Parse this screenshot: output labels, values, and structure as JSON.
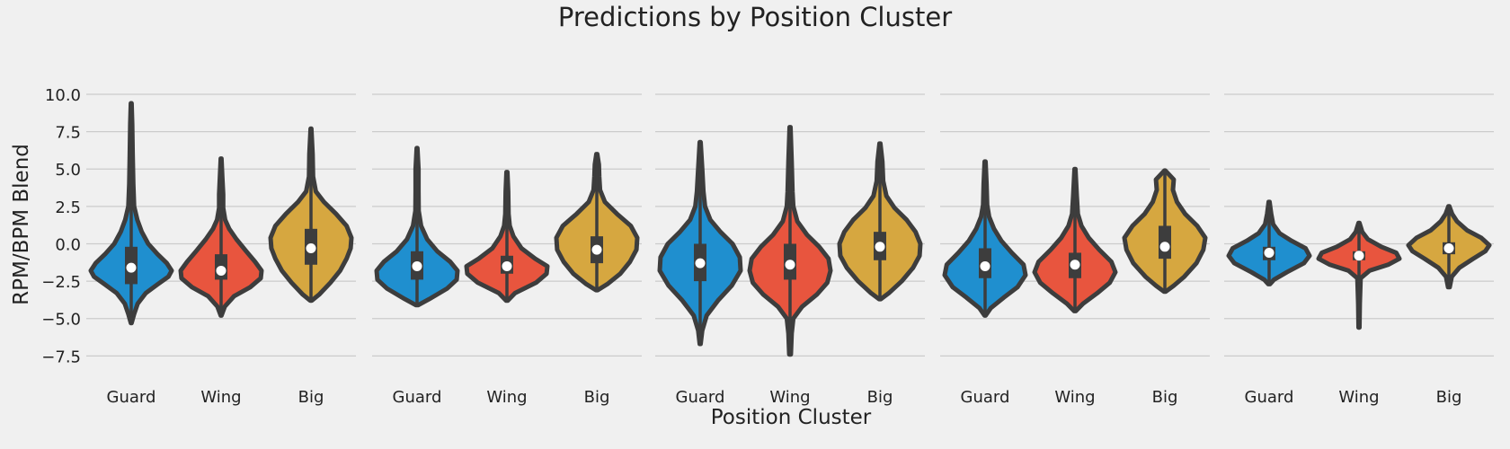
{
  "chart_data": {
    "type": "violin",
    "title": "Predictions by Position Cluster",
    "xlabel": "Position Cluster",
    "ylabel": "RPM/BPM Blend",
    "ylim": [
      -8.5,
      11.5
    ],
    "yticks": [
      10.0,
      7.5,
      5.0,
      2.5,
      0.0,
      -2.5,
      -5.0,
      -7.5
    ],
    "ytick_labels": [
      "10.0",
      "7.5",
      "5.0",
      "2.5",
      "0.0",
      "−2.5",
      "−5.0",
      "−7.5"
    ],
    "categories": [
      "Guard",
      "Wing",
      "Big"
    ],
    "category_colors": {
      "Guard": "#1f8fcf",
      "Wing": "#e8553e",
      "Big": "#d6a740"
    },
    "grid": true,
    "panels": [
      {
        "violins": [
          {
            "category": "Guard",
            "min": -5.3,
            "q1": -2.7,
            "median": -1.6,
            "q3": -0.2,
            "max": 9.4,
            "profile": [
              [
                -5.3,
                0.01
              ],
              [
                -4.7,
                0.07
              ],
              [
                -4.0,
                0.16
              ],
              [
                -3.3,
                0.36
              ],
              [
                -2.7,
                0.66
              ],
              [
                -2.2,
                0.92
              ],
              [
                -1.8,
                1.0
              ],
              [
                -1.3,
                0.88
              ],
              [
                -0.7,
                0.65
              ],
              [
                0.0,
                0.42
              ],
              [
                0.8,
                0.26
              ],
              [
                1.6,
                0.15
              ],
              [
                2.5,
                0.07
              ],
              [
                4.0,
                0.05
              ],
              [
                6.0,
                0.035
              ],
              [
                8.0,
                0.025
              ],
              [
                9.4,
                0.01
              ]
            ]
          },
          {
            "category": "Wing",
            "min": -4.8,
            "q1": -2.4,
            "median": -1.8,
            "q3": -0.7,
            "max": 5.7,
            "profile": [
              [
                -4.8,
                0.01
              ],
              [
                -4.2,
                0.09
              ],
              [
                -3.5,
                0.32
              ],
              [
                -2.9,
                0.72
              ],
              [
                -2.3,
                0.98
              ],
              [
                -1.8,
                1.0
              ],
              [
                -1.2,
                0.84
              ],
              [
                -0.5,
                0.62
              ],
              [
                0.3,
                0.38
              ],
              [
                1.0,
                0.2
              ],
              [
                1.6,
                0.1
              ],
              [
                2.4,
                0.05
              ],
              [
                3.3,
                0.05
              ],
              [
                4.5,
                0.03
              ],
              [
                5.7,
                0.01
              ]
            ]
          },
          {
            "category": "Big",
            "min": -3.8,
            "q1": -1.4,
            "median": -0.3,
            "q3": 1.0,
            "max": 7.7,
            "profile": [
              [
                -3.8,
                0.02
              ],
              [
                -3.4,
                0.2
              ],
              [
                -2.6,
                0.48
              ],
              [
                -1.8,
                0.72
              ],
              [
                -1.0,
                0.88
              ],
              [
                -0.3,
                0.98
              ],
              [
                0.4,
                1.0
              ],
              [
                1.2,
                0.88
              ],
              [
                2.0,
                0.62
              ],
              [
                2.8,
                0.32
              ],
              [
                3.5,
                0.12
              ],
              [
                4.5,
                0.05
              ],
              [
                6.0,
                0.04
              ],
              [
                7.7,
                0.01
              ]
            ]
          }
        ]
      },
      {
        "violins": [
          {
            "category": "Guard",
            "min": -4.1,
            "q1": -2.4,
            "median": -1.5,
            "q3": -0.5,
            "max": 6.4,
            "profile": [
              [
                -4.1,
                0.03
              ],
              [
                -3.7,
                0.3
              ],
              [
                -3.0,
                0.74
              ],
              [
                -2.4,
                0.98
              ],
              [
                -1.8,
                1.0
              ],
              [
                -1.2,
                0.82
              ],
              [
                -0.5,
                0.5
              ],
              [
                0.3,
                0.25
              ],
              [
                1.2,
                0.1
              ],
              [
                2.2,
                0.04
              ],
              [
                3.5,
                0.035
              ],
              [
                5.0,
                0.035
              ],
              [
                6.4,
                0.01
              ]
            ]
          },
          {
            "category": "Wing",
            "min": -3.8,
            "q1": -2.0,
            "median": -1.5,
            "q3": -0.8,
            "max": 4.8,
            "profile": [
              [
                -3.8,
                0.02
              ],
              [
                -3.3,
                0.2
              ],
              [
                -2.6,
                0.72
              ],
              [
                -2.0,
                0.98
              ],
              [
                -1.5,
                1.0
              ],
              [
                -1.0,
                0.7
              ],
              [
                -0.3,
                0.36
              ],
              [
                0.5,
                0.16
              ],
              [
                1.2,
                0.07
              ],
              [
                2.0,
                0.04
              ],
              [
                3.5,
                0.03
              ],
              [
                4.8,
                0.01
              ]
            ]
          },
          {
            "category": "Big",
            "min": -3.1,
            "q1": -1.3,
            "median": -0.4,
            "q3": 0.5,
            "max": 6.0,
            "profile": [
              [
                -3.1,
                0.02
              ],
              [
                -2.7,
                0.26
              ],
              [
                -2.0,
                0.58
              ],
              [
                -1.2,
                0.82
              ],
              [
                -0.4,
                0.98
              ],
              [
                0.4,
                1.0
              ],
              [
                1.2,
                0.84
              ],
              [
                2.0,
                0.5
              ],
              [
                2.8,
                0.2
              ],
              [
                3.6,
                0.08
              ],
              [
                4.5,
                0.06
              ],
              [
                5.3,
                0.05
              ],
              [
                6.0,
                0.01
              ]
            ]
          }
        ]
      },
      {
        "violins": [
          {
            "category": "Guard",
            "min": -6.7,
            "q1": -2.5,
            "median": -1.3,
            "q3": 0.0,
            "max": 6.8,
            "profile": [
              [
                -6.7,
                0.01
              ],
              [
                -5.8,
                0.05
              ],
              [
                -4.8,
                0.16
              ],
              [
                -3.8,
                0.44
              ],
              [
                -2.8,
                0.78
              ],
              [
                -1.8,
                1.0
              ],
              [
                -0.9,
                0.98
              ],
              [
                0.0,
                0.8
              ],
              [
                0.8,
                0.5
              ],
              [
                1.6,
                0.25
              ],
              [
                2.5,
                0.12
              ],
              [
                3.5,
                0.08
              ],
              [
                5.0,
                0.05
              ],
              [
                6.8,
                0.01
              ]
            ]
          },
          {
            "category": "Wing",
            "min": -7.4,
            "q1": -2.4,
            "median": -1.4,
            "q3": 0.0,
            "max": 7.8,
            "profile": [
              [
                -7.4,
                0.02
              ],
              [
                -6.0,
                0.04
              ],
              [
                -5.0,
                0.08
              ],
              [
                -4.2,
                0.3
              ],
              [
                -3.4,
                0.66
              ],
              [
                -2.6,
                0.92
              ],
              [
                -1.8,
                1.0
              ],
              [
                -1.0,
                0.95
              ],
              [
                -0.2,
                0.72
              ],
              [
                0.6,
                0.42
              ],
              [
                1.5,
                0.18
              ],
              [
                2.5,
                0.08
              ],
              [
                3.5,
                0.06
              ],
              [
                5.5,
                0.04
              ],
              [
                7.8,
                0.01
              ]
            ]
          },
          {
            "category": "Big",
            "min": -3.7,
            "q1": -1.1,
            "median": -0.2,
            "q3": 0.8,
            "max": 6.7,
            "profile": [
              [
                -3.7,
                0.02
              ],
              [
                -3.3,
                0.22
              ],
              [
                -2.5,
                0.54
              ],
              [
                -1.6,
                0.82
              ],
              [
                -0.8,
                0.98
              ],
              [
                0.0,
                1.0
              ],
              [
                0.8,
                0.88
              ],
              [
                1.6,
                0.66
              ],
              [
                2.4,
                0.36
              ],
              [
                3.2,
                0.16
              ],
              [
                4.2,
                0.08
              ],
              [
                5.5,
                0.06
              ],
              [
                6.7,
                0.01
              ]
            ]
          }
        ]
      },
      {
        "violins": [
          {
            "category": "Guard",
            "min": -4.8,
            "q1": -2.3,
            "median": -1.5,
            "q3": -0.3,
            "max": 5.5,
            "profile": [
              [
                -4.8,
                0.01
              ],
              [
                -4.3,
                0.14
              ],
              [
                -3.6,
                0.46
              ],
              [
                -2.9,
                0.8
              ],
              [
                -2.1,
                1.0
              ],
              [
                -1.4,
                0.95
              ],
              [
                -0.6,
                0.66
              ],
              [
                0.2,
                0.4
              ],
              [
                1.0,
                0.22
              ],
              [
                1.8,
                0.1
              ],
              [
                2.6,
                0.05
              ],
              [
                4.0,
                0.035
              ],
              [
                5.5,
                0.01
              ]
            ]
          },
          {
            "category": "Wing",
            "min": -4.5,
            "q1": -2.3,
            "median": -1.4,
            "q3": -0.6,
            "max": 5.0,
            "profile": [
              [
                -4.5,
                0.02
              ],
              [
                -4.0,
                0.2
              ],
              [
                -3.3,
                0.55
              ],
              [
                -2.6,
                0.86
              ],
              [
                -1.9,
                1.0
              ],
              [
                -1.2,
                0.9
              ],
              [
                -0.4,
                0.6
              ],
              [
                0.4,
                0.34
              ],
              [
                1.2,
                0.16
              ],
              [
                2.0,
                0.07
              ],
              [
                3.2,
                0.045
              ],
              [
                5.0,
                0.01
              ]
            ]
          },
          {
            "category": "Big",
            "min": -3.2,
            "q1": -1.0,
            "median": -0.2,
            "q3": 1.2,
            "max": 4.9,
            "profile": [
              [
                -3.2,
                0.02
              ],
              [
                -2.8,
                0.22
              ],
              [
                -2.2,
                0.48
              ],
              [
                -1.3,
                0.78
              ],
              [
                -0.4,
                0.95
              ],
              [
                0.4,
                1.0
              ],
              [
                1.2,
                0.8
              ],
              [
                2.0,
                0.5
              ],
              [
                2.8,
                0.3
              ],
              [
                3.6,
                0.2
              ],
              [
                4.3,
                0.22
              ],
              [
                4.9,
                0.01
              ]
            ]
          }
        ]
      },
      {
        "violins": [
          {
            "category": "Guard",
            "min": -2.7,
            "q1": -1.1,
            "median": -0.6,
            "q3": -0.2,
            "max": 2.8,
            "profile": [
              [
                -2.7,
                0.02
              ],
              [
                -2.4,
                0.12
              ],
              [
                -1.9,
                0.44
              ],
              [
                -1.3,
                0.86
              ],
              [
                -0.8,
                1.0
              ],
              [
                -0.3,
                0.9
              ],
              [
                0.2,
                0.55
              ],
              [
                0.7,
                0.26
              ],
              [
                1.3,
                0.1
              ],
              [
                2.0,
                0.05
              ],
              [
                2.8,
                0.01
              ]
            ]
          },
          {
            "category": "Wing",
            "min": -5.6,
            "q1": -1.1,
            "median": -0.8,
            "q3": -0.5,
            "max": 1.4,
            "profile": [
              [
                -5.6,
                0.01
              ],
              [
                -4.0,
                0.02
              ],
              [
                -2.3,
                0.04
              ],
              [
                -1.8,
                0.26
              ],
              [
                -1.4,
                0.72
              ],
              [
                -1.0,
                1.0
              ],
              [
                -0.6,
                0.92
              ],
              [
                -0.2,
                0.55
              ],
              [
                0.3,
                0.22
              ],
              [
                0.8,
                0.08
              ],
              [
                1.4,
                0.01
              ]
            ]
          },
          {
            "category": "Big",
            "min": -2.9,
            "q1": -0.7,
            "median": -0.3,
            "q3": 0.1,
            "max": 2.5,
            "profile": [
              [
                -2.9,
                0.02
              ],
              [
                -2.2,
                0.07
              ],
              [
                -1.6,
                0.26
              ],
              [
                -1.0,
                0.6
              ],
              [
                -0.5,
                0.9
              ],
              [
                -0.1,
                1.0
              ],
              [
                0.4,
                0.8
              ],
              [
                0.9,
                0.45
              ],
              [
                1.5,
                0.2
              ],
              [
                2.0,
                0.08
              ],
              [
                2.5,
                0.01
              ]
            ]
          }
        ]
      }
    ]
  }
}
